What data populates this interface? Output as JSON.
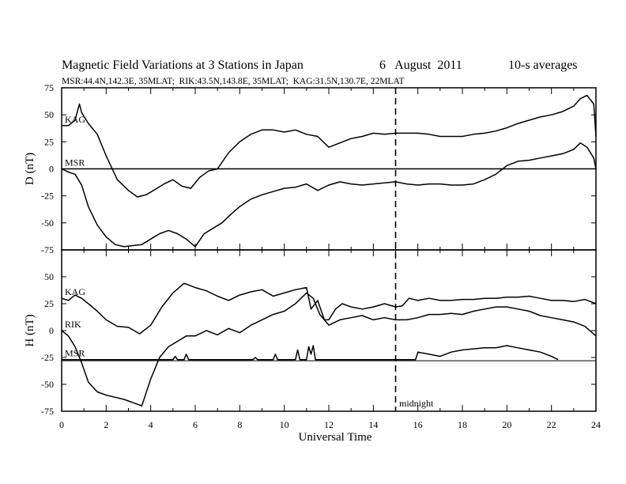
{
  "chart_data": {
    "type": "line",
    "title": "Magnetic Field Variations at 3 Stations in Japan",
    "date": "6   August  2011",
    "resolution": "10-s averages",
    "stations_line": "MSR:44.4N,142.3E, 35MLAT;  RIK:43.5N,143.8E, 35MLAT;  KAG:31.5N,130.7E, 22MLAT",
    "xlabel": "Universal Time",
    "xlim": [
      0,
      24
    ],
    "x_ticks": [
      "0",
      "2",
      "4",
      "6",
      "8",
      "10",
      "12",
      "14",
      "16",
      "18",
      "20",
      "22",
      "24"
    ],
    "annotation": "midnight",
    "midnight_ut": 15,
    "grid": false,
    "panels": [
      {
        "ylabel": "D (nT)",
        "ylim": [
          -75,
          75
        ],
        "y_ticks": [
          "75",
          "50",
          "25",
          "0",
          "-25",
          "-50",
          "-75"
        ],
        "zero_line": 0,
        "series": [
          {
            "name": "KAG",
            "x": [
              0,
              0.3,
              0.6,
              0.8,
              0.9,
              1.2,
              1.6,
              2,
              2.5,
              3,
              3.4,
              3.8,
              4.2,
              4.6,
              5,
              5.4,
              5.8,
              6.2,
              6.6,
              7,
              7.5,
              8,
              8.5,
              9,
              9.5,
              10,
              10.5,
              11,
              11.5,
              12,
              12.5,
              13,
              13.5,
              14,
              14.5,
              15,
              15.5,
              16,
              16.5,
              17,
              17.5,
              18,
              18.5,
              19,
              19.5,
              20,
              20.5,
              21,
              21.5,
              22,
              22.5,
              23,
              23.3,
              23.6,
              23.9,
              24
            ],
            "y": [
              40,
              40,
              45,
              60,
              52,
              42,
              32,
              12,
              -10,
              -20,
              -26,
              -24,
              -19,
              -14,
              -10,
              -16,
              -18,
              -8,
              -2,
              0,
              15,
              25,
              32,
              36,
              36,
              34,
              36,
              32,
              30,
              20,
              24,
              28,
              30,
              33,
              32,
              33,
              33,
              33,
              32,
              30,
              30,
              30,
              32,
              33,
              35,
              38,
              42,
              45,
              48,
              50,
              53,
              58,
              65,
              68,
              60,
              30
            ]
          },
          {
            "name": "MSR",
            "x": [
              0,
              0.3,
              0.6,
              0.9,
              1.2,
              1.6,
              2,
              2.4,
              2.8,
              3.2,
              3.6,
              4,
              4.4,
              4.8,
              5.2,
              5.6,
              6,
              6.4,
              6.8,
              7.2,
              7.6,
              8,
              8.5,
              9,
              9.5,
              10,
              10.5,
              11,
              11.5,
              12,
              12.5,
              13,
              13.5,
              14,
              14.5,
              15,
              15.5,
              16,
              16.5,
              17,
              17.5,
              18,
              18.5,
              19,
              19.5,
              20,
              20.5,
              21,
              21.5,
              22,
              22.5,
              23,
              23.3,
              23.6,
              23.9,
              24
            ],
            "y": [
              0,
              -3,
              -5,
              -15,
              -35,
              -52,
              -63,
              -70,
              -72,
              -71,
              -70,
              -65,
              -60,
              -57,
              -60,
              -65,
              -72,
              -60,
              -55,
              -50,
              -42,
              -35,
              -28,
              -24,
              -21,
              -18,
              -17,
              -14,
              -20,
              -15,
              -12,
              -14,
              -15,
              -14,
              -13,
              -12,
              -14,
              -15,
              -14,
              -14,
              -15,
              -15,
              -14,
              -10,
              -5,
              3,
              7,
              8,
              10,
              12,
              14,
              18,
              24,
              20,
              10,
              0
            ]
          }
        ]
      },
      {
        "ylabel": "H (nT)",
        "ylim": [
          -75,
          75
        ],
        "y_ticks": [
          "50",
          "25",
          "0",
          "-25",
          "-50",
          "-75"
        ],
        "zero_line": -28,
        "series": [
          {
            "name": "KAG",
            "x": [
              0,
              0.3,
              0.6,
              0.9,
              1.2,
              1.6,
              2,
              2.5,
              3,
              3.5,
              4,
              4.5,
              5,
              5.5,
              6,
              6.5,
              7,
              7.5,
              8,
              8.5,
              9,
              9.5,
              10,
              10.5,
              11,
              11.2,
              11.5,
              11.8,
              12,
              12.3,
              12.6,
              13,
              13.5,
              14,
              14.5,
              15,
              15.3,
              15.6,
              16,
              16.5,
              17,
              17.5,
              18,
              18.5,
              19,
              19.5,
              20,
              20.5,
              21,
              21.5,
              22,
              22.5,
              23,
              23.5,
              24
            ],
            "y": [
              30,
              28,
              33,
              30,
              25,
              18,
              10,
              4,
              3,
              -3,
              5,
              22,
              35,
              44,
              40,
              37,
              32,
              28,
              33,
              36,
              38,
              32,
              35,
              38,
              40,
              20,
              28,
              10,
              10,
              20,
              25,
              22,
              20,
              22,
              25,
              22,
              23,
              30,
              28,
              30,
              28,
              28,
              29,
              29,
              30,
              30,
              31,
              31,
              32,
              30,
              28,
              28,
              27,
              29,
              25
            ]
          },
          {
            "name": "RIK",
            "x": [
              0,
              0.3,
              0.6,
              0.9,
              1.2,
              1.6,
              2,
              2.4,
              2.8,
              3.2,
              3.6,
              4,
              4.4,
              4.8,
              5.2,
              5.6,
              6,
              6.5,
              7,
              7.5,
              8,
              8.5,
              9,
              9.5,
              10,
              10.5,
              11,
              11.3,
              11.6,
              12,
              12.5,
              13,
              13.5,
              14,
              14.5,
              15,
              15.5,
              16,
              16.5,
              17,
              17.5,
              18,
              18.5,
              19,
              19.5,
              20,
              20.5,
              21,
              21.5,
              22,
              22.5,
              23,
              23.5,
              24
            ],
            "y": [
              0,
              -5,
              -15,
              -30,
              -48,
              -57,
              -60,
              -62,
              -64,
              -67,
              -70,
              -45,
              -25,
              -15,
              -10,
              -5,
              -5,
              0,
              -4,
              2,
              -2,
              5,
              10,
              15,
              18,
              25,
              35,
              30,
              15,
              5,
              10,
              12,
              14,
              10,
              12,
              10,
              10,
              12,
              15,
              15,
              16,
              15,
              18,
              20,
              22,
              22,
              20,
              18,
              14,
              12,
              10,
              8,
              4,
              -5
            ]
          },
          {
            "name": "MSR",
            "x": [
              0,
              0.3,
              0.6,
              0.9,
              1.2,
              1.6,
              2,
              3,
              4,
              4.5,
              5,
              5.1,
              5.2,
              5.5,
              5.6,
              5.7,
              6,
              7,
              8,
              8.6,
              8.7,
              8.8,
              9,
              9.5,
              9.6,
              9.7,
              10,
              10.5,
              10.6,
              10.7,
              11,
              11.1,
              11.2,
              11.3,
              11.4,
              12,
              13,
              14,
              15,
              15.5,
              15.9,
              16,
              16.5,
              17,
              17.5,
              18,
              18.5,
              19,
              19.5,
              20,
              20.5,
              21,
              21.5,
              22,
              22.3
            ],
            "y": [
              -27,
              -27,
              -27,
              -27,
              -27,
              -27,
              -27,
              -27,
              -27,
              -27,
              -27,
              -24,
              -27,
              -27,
              -22,
              -27,
              -27,
              -27,
              -27,
              -27,
              -25,
              -27,
              -27,
              -27,
              -22,
              -27,
              -27,
              -27,
              -18,
              -27,
              -27,
              -15,
              -22,
              -14,
              -27,
              -27,
              -27,
              -27,
              -27,
              -27,
              -27,
              -20,
              -22,
              -24,
              -20,
              -18,
              -17,
              -16,
              -16,
              -14,
              -16,
              -18,
              -20,
              -24,
              -27
            ]
          }
        ]
      }
    ]
  }
}
